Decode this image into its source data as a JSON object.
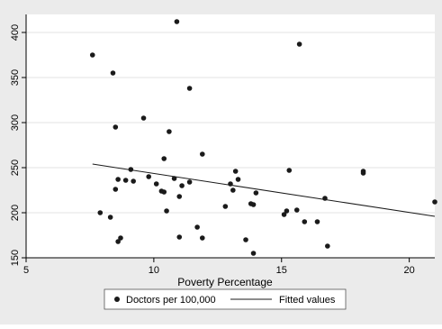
{
  "chart_data": {
    "type": "scatter",
    "xlabel": "Poverty Percentage",
    "ylabel": "",
    "xlim": [
      5,
      21
    ],
    "ylim": [
      150,
      420
    ],
    "x_ticks": [
      5,
      10,
      15,
      20
    ],
    "y_ticks": [
      150,
      200,
      250,
      300,
      350,
      400
    ],
    "grid": "horizontal",
    "legend_position": "bottom",
    "series": [
      {
        "name": "Doctors per 100,000",
        "kind": "points",
        "color": "#1a1a1a",
        "points": [
          [
            7.6,
            375
          ],
          [
            7.9,
            200
          ],
          [
            8.3,
            195
          ],
          [
            8.4,
            355
          ],
          [
            8.5,
            295
          ],
          [
            8.5,
            226
          ],
          [
            8.6,
            237
          ],
          [
            8.6,
            168
          ],
          [
            8.7,
            172
          ],
          [
            8.9,
            236
          ],
          [
            9.1,
            248
          ],
          [
            9.2,
            235
          ],
          [
            9.6,
            305
          ],
          [
            9.8,
            240
          ],
          [
            10.1,
            232
          ],
          [
            10.3,
            224
          ],
          [
            10.4,
            260
          ],
          [
            10.4,
            223
          ],
          [
            10.5,
            202
          ],
          [
            10.6,
            290
          ],
          [
            10.8,
            238
          ],
          [
            10.9,
            412
          ],
          [
            11.0,
            218
          ],
          [
            11.0,
            173
          ],
          [
            11.1,
            230
          ],
          [
            11.4,
            338
          ],
          [
            11.4,
            234
          ],
          [
            11.7,
            184
          ],
          [
            11.9,
            265
          ],
          [
            11.9,
            172
          ],
          [
            12.8,
            207
          ],
          [
            13.0,
            232
          ],
          [
            13.1,
            225
          ],
          [
            13.2,
            246
          ],
          [
            13.3,
            237
          ],
          [
            13.6,
            170
          ],
          [
            13.8,
            210
          ],
          [
            13.9,
            209
          ],
          [
            13.9,
            155
          ],
          [
            14.0,
            222
          ],
          [
            15.1,
            198
          ],
          [
            15.2,
            202
          ],
          [
            15.3,
            247
          ],
          [
            15.6,
            203
          ],
          [
            15.7,
            387
          ],
          [
            15.9,
            190
          ],
          [
            16.4,
            190
          ],
          [
            16.7,
            216
          ],
          [
            16.8,
            163
          ],
          [
            18.2,
            246
          ],
          [
            18.2,
            244
          ],
          [
            21.0,
            212
          ]
        ]
      },
      {
        "name": "Fitted values",
        "kind": "line",
        "color": "#1a1a1a",
        "points": [
          [
            7.6,
            254
          ],
          [
            21.0,
            196
          ]
        ]
      }
    ]
  },
  "legend": {
    "items": [
      {
        "label": "Doctors per 100,000",
        "symbol": "dot"
      },
      {
        "label": "Fitted values",
        "symbol": "line"
      }
    ]
  },
  "colors": {
    "outer_background": "#ebebeb",
    "plot_background": "#ffffff",
    "grid": "#e3e3e3",
    "marker": "#1a1a1a"
  }
}
